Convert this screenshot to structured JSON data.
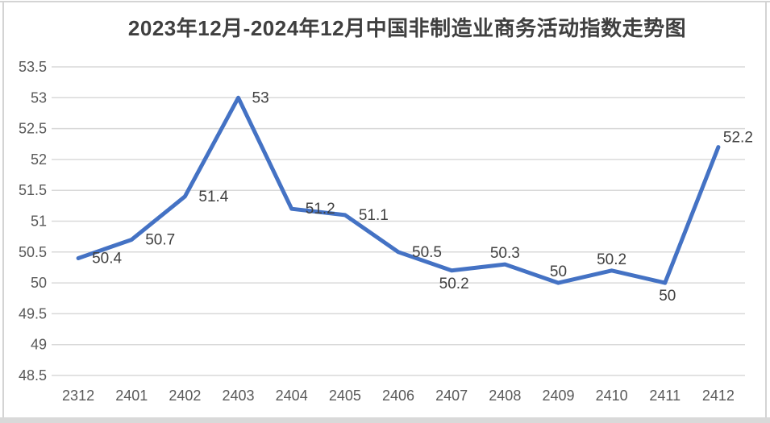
{
  "window": {
    "background": "#ffffff",
    "border_color": "#d4d4d4",
    "bottom_bar_color": "#d9d9d9"
  },
  "chart": {
    "title": "2023年12月-2024年12月中国非制造业商务活动指数走势图"
  },
  "chart_data": {
    "type": "line",
    "title": "2023年12月-2024年12月中国非制造业商务活动指数走势图",
    "categories": [
      "2312",
      "2401",
      "2402",
      "2403",
      "2404",
      "2405",
      "2406",
      "2407",
      "2408",
      "2409",
      "2410",
      "2411",
      "2412"
    ],
    "values": [
      50.4,
      50.7,
      51.4,
      53,
      51.2,
      51.1,
      50.5,
      50.2,
      50.3,
      50,
      50.2,
      50,
      52.2
    ],
    "data_labels": [
      "50.4",
      "50.7",
      "51.4",
      "53",
      "51.2",
      "51.1",
      "50.5",
      "50.2",
      "50.3",
      "50",
      "50.2",
      "50",
      "52.2"
    ],
    "label_placements": [
      "right",
      "right",
      "right",
      "right",
      "right",
      "right",
      "right",
      "below",
      "above",
      "above",
      "above",
      "below",
      "above-right"
    ],
    "xlabel": "",
    "ylabel": "",
    "ylim": [
      48.5,
      53.5
    ],
    "ytick_step": 0.5,
    "ytick_labels": [
      "48.5",
      "49",
      "49.5",
      "50",
      "50.5",
      "51",
      "51.5",
      "52",
      "52.5",
      "53",
      "53.5"
    ],
    "grid": true,
    "legend": "none",
    "markers": "none",
    "line_color": "#4472C4",
    "gridline_color": "#d9d9d9",
    "axis_text_color": "#595959",
    "data_label_color": "#404040"
  }
}
